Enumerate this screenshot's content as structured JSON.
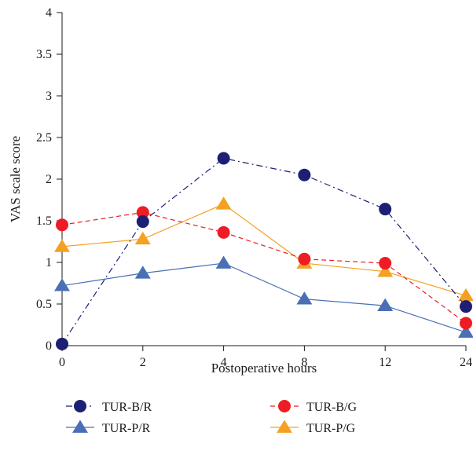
{
  "chart_data": {
    "type": "line",
    "categories": [
      "0",
      "2",
      "4",
      "8",
      "12",
      "24"
    ],
    "xlabel": "Postoperative hours",
    "ylabel": "VAS scale score",
    "ylim": [
      0,
      4
    ],
    "yticks": [
      "0",
      "0.5",
      "1",
      "1.5",
      "2",
      "2.5",
      "3",
      "3.5",
      "4"
    ],
    "grid": false,
    "legend_position": "bottom",
    "series": [
      {
        "name": "TUR-B/R",
        "values": [
          0.02,
          1.49,
          2.25,
          2.05,
          1.64,
          0.47
        ],
        "color": "#1c1f73",
        "marker": "circle",
        "dash": "dashdot"
      },
      {
        "name": "TUR-B/G",
        "values": [
          1.45,
          1.6,
          1.36,
          1.04,
          0.99,
          0.27
        ],
        "color": "#ee1c24",
        "marker": "circle",
        "dash": "dashed"
      },
      {
        "name": "TUR-P/R",
        "values": [
          0.72,
          0.87,
          0.99,
          0.56,
          0.48,
          0.16
        ],
        "color": "#4a6fb5",
        "marker": "triangle",
        "dash": "solid"
      },
      {
        "name": "TUR-P/G",
        "values": [
          1.19,
          1.28,
          1.7,
          0.99,
          0.89,
          0.6
        ],
        "color": "#f4a020",
        "marker": "triangle",
        "dash": "solid"
      }
    ]
  }
}
